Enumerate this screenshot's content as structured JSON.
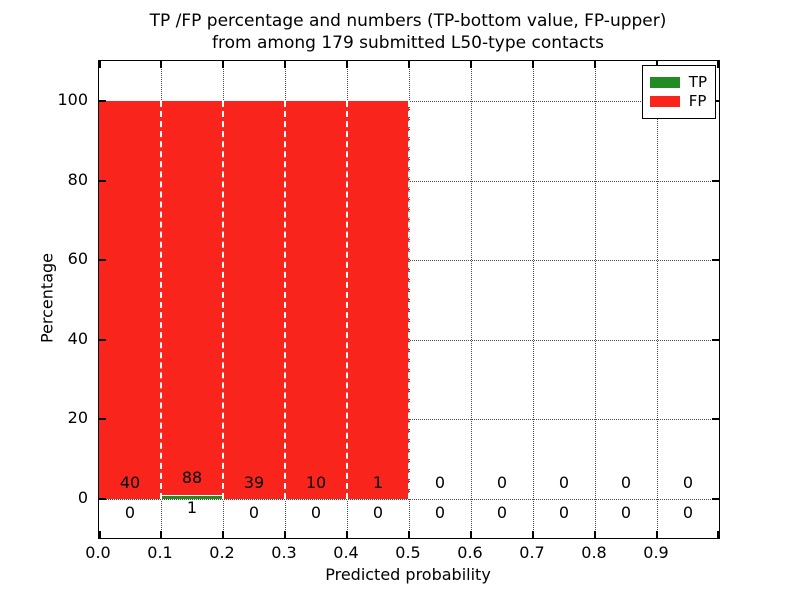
{
  "chart_data": {
    "type": "bar",
    "stacked": true,
    "title_line1": "TP /FP percentage and numbers (TP-bottom value, FP-upper)",
    "title_line2": "from among 179 submitted L50-type contacts",
    "xlabel": "Predicted probability",
    "ylabel": "Percentage",
    "total_submitted": 179,
    "grid": "dotted",
    "legend_position": "upper right",
    "xlim": [
      0.0,
      1.0
    ],
    "y_axis_percent_range": [
      0,
      100
    ],
    "bin_width": 0.1,
    "bin_starts": [
      0.0,
      0.1,
      0.2,
      0.3,
      0.4,
      0.5,
      0.6,
      0.7,
      0.8,
      0.9
    ],
    "x_tick_labels": [
      "0.0",
      "0.1",
      "0.2",
      "0.3",
      "0.4",
      "0.5",
      "0.6",
      "0.7",
      "0.8",
      "0.9"
    ],
    "y_tick_values": [
      0,
      20,
      40,
      60,
      80,
      100
    ],
    "y_tick_labels": [
      "0",
      "20",
      "40",
      "60",
      "80",
      "100"
    ],
    "legend": [
      {
        "name": "TP",
        "color": "#228b22"
      },
      {
        "name": "FP",
        "color": "#f9251c"
      }
    ],
    "series": [
      {
        "name": "TP",
        "counts": [
          0,
          1,
          0,
          0,
          0,
          0,
          0,
          0,
          0,
          0
        ]
      },
      {
        "name": "FP",
        "counts": [
          40,
          88,
          39,
          10,
          1,
          0,
          0,
          0,
          0,
          0
        ]
      }
    ]
  }
}
